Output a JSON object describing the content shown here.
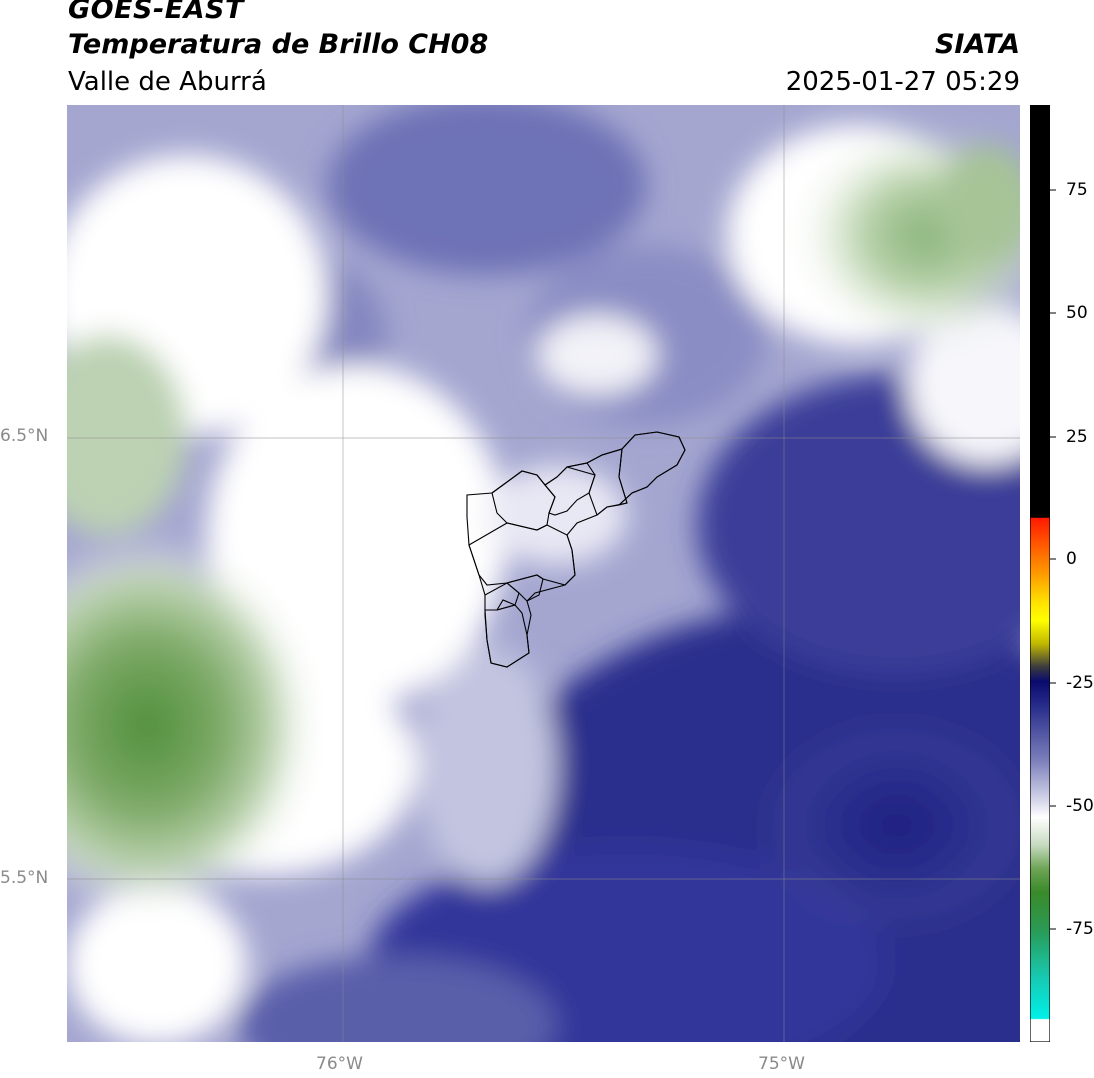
{
  "header": {
    "satellite": "GOES-EAST",
    "product": "Temperatura de Brillo CH08",
    "region": "Valle de Aburrá",
    "agency": "SIATA",
    "timestamp": "2025-01-27 05:29"
  },
  "map": {
    "lat_labels": [
      "6.5°N",
      "5.5°N"
    ],
    "lon_labels": [
      "76°W",
      "75°W"
    ]
  },
  "colorbar": {
    "ticks": [
      "75",
      "50",
      "25",
      "0",
      "-25",
      "-50",
      "-75"
    ],
    "colors": {
      "top": "#000000",
      "red": "#ff2000",
      "orange": "#ff8000",
      "yellow": "#ffff00",
      "dark_navy": "#0a0a6e",
      "navy": "#2a2e8c",
      "lavender": "#a6a8d0",
      "white": "#ffffff",
      "light_green": "#c8dcc0",
      "green": "#4a8c34",
      "teal": "#20c0a0",
      "cyan": "#00e8e8"
    }
  }
}
